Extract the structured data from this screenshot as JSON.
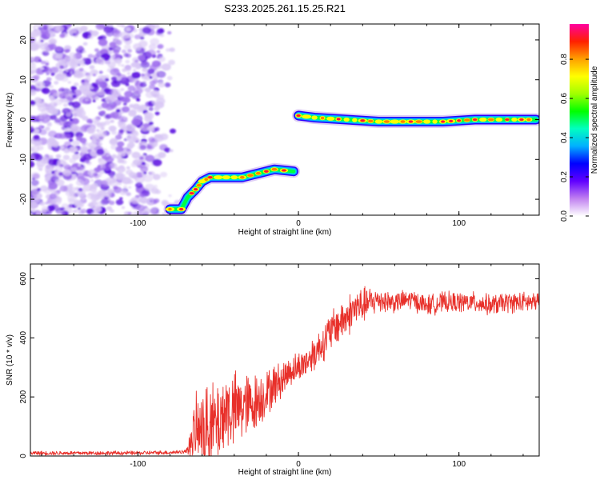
{
  "title": "S233.2025.261.15.25.R21",
  "colors": {
    "snr_line": "#e8302a",
    "noise_purple": "#7a2ee0",
    "colormap": [
      "#ffffff",
      "#d9c8f5",
      "#a070ee",
      "#5a10e0",
      "#2a00ff",
      "#00a8ff",
      "#00e0e0",
      "#00ff40",
      "#ffff00",
      "#ff8000",
      "#ff1040",
      "#ff00ff"
    ]
  },
  "chart_data": [
    {
      "type": "heatmap",
      "xlabel": "Height of straight line (km)",
      "ylabel": "Frequency (Hz)",
      "xlim": [
        -167,
        150
      ],
      "ylim": [
        -24,
        24
      ],
      "xticks": [
        -100,
        0,
        100
      ],
      "yticks": [
        -20,
        -10,
        0,
        10,
        20
      ],
      "colorbar": {
        "label": "Normalized spectral amplitude",
        "range": [
          0,
          0.98
        ],
        "ticks": [
          0.0,
          0.2,
          0.4,
          0.6,
          0.8
        ]
      },
      "noise_region": {
        "x": [
          -167,
          -75
        ],
        "y": [
          -24,
          24
        ]
      },
      "ridge": [
        {
          "x": -80,
          "y": -22.5
        },
        {
          "x": -73,
          "y": -22.5
        },
        {
          "x": -69,
          "y": -19.5
        },
        {
          "x": -64,
          "y": -17.5
        },
        {
          "x": -60,
          "y": -15.5
        },
        {
          "x": -55,
          "y": -14.5
        },
        {
          "x": -45,
          "y": -14.5
        },
        {
          "x": -35,
          "y": -14.5
        },
        {
          "x": -25,
          "y": -13.5
        },
        {
          "x": -15,
          "y": -12.5
        },
        {
          "x": -3,
          "y": -13.0
        },
        {
          "x": 0,
          "y": 1.0
        },
        {
          "x": 10,
          "y": 0.5
        },
        {
          "x": 30,
          "y": 0.0
        },
        {
          "x": 50,
          "y": -0.5
        },
        {
          "x": 70,
          "y": -0.5
        },
        {
          "x": 90,
          "y": -0.5
        },
        {
          "x": 110,
          "y": 0.0
        },
        {
          "x": 130,
          "y": 0.0
        },
        {
          "x": 148,
          "y": 0.0
        }
      ]
    },
    {
      "type": "line",
      "xlabel": "Height of straight line (km)",
      "ylabel": "SNR (10 * v/v)",
      "xlim": [
        -167,
        150
      ],
      "ylim": [
        0,
        650
      ],
      "xticks": [
        -100,
        0,
        100
      ],
      "yticks": [
        0,
        200,
        400,
        600
      ],
      "series": [
        {
          "x": [
            -167,
            -150,
            -120,
            -100,
            -80,
            -70,
            -64,
            -60,
            -55,
            -50,
            -45,
            -40,
            -35,
            -30,
            -25,
            -20,
            -15,
            -10,
            -5,
            0,
            5,
            10,
            15,
            20,
            25,
            30,
            35,
            40,
            45,
            50,
            60,
            70,
            80,
            90,
            100,
            110,
            120,
            130,
            140,
            150
          ],
          "values": [
            10,
            10,
            10,
            10,
            12,
            15,
            90,
            80,
            100,
            110,
            160,
            150,
            170,
            170,
            190,
            210,
            240,
            260,
            290,
            300,
            320,
            350,
            380,
            420,
            450,
            470,
            500,
            510,
            520,
            530,
            520,
            530,
            510,
            520,
            520,
            520,
            510,
            520,
            520,
            520
          ],
          "noise": [
            8,
            8,
            8,
            8,
            8,
            8,
            130,
            150,
            160,
            170,
            160,
            150,
            140,
            120,
            110,
            90,
            80,
            70,
            60,
            60,
            60,
            70,
            70,
            80,
            80,
            80,
            80,
            70,
            60,
            50,
            40,
            40,
            40,
            40,
            40,
            40,
            40,
            40,
            40,
            40
          ]
        }
      ]
    }
  ]
}
